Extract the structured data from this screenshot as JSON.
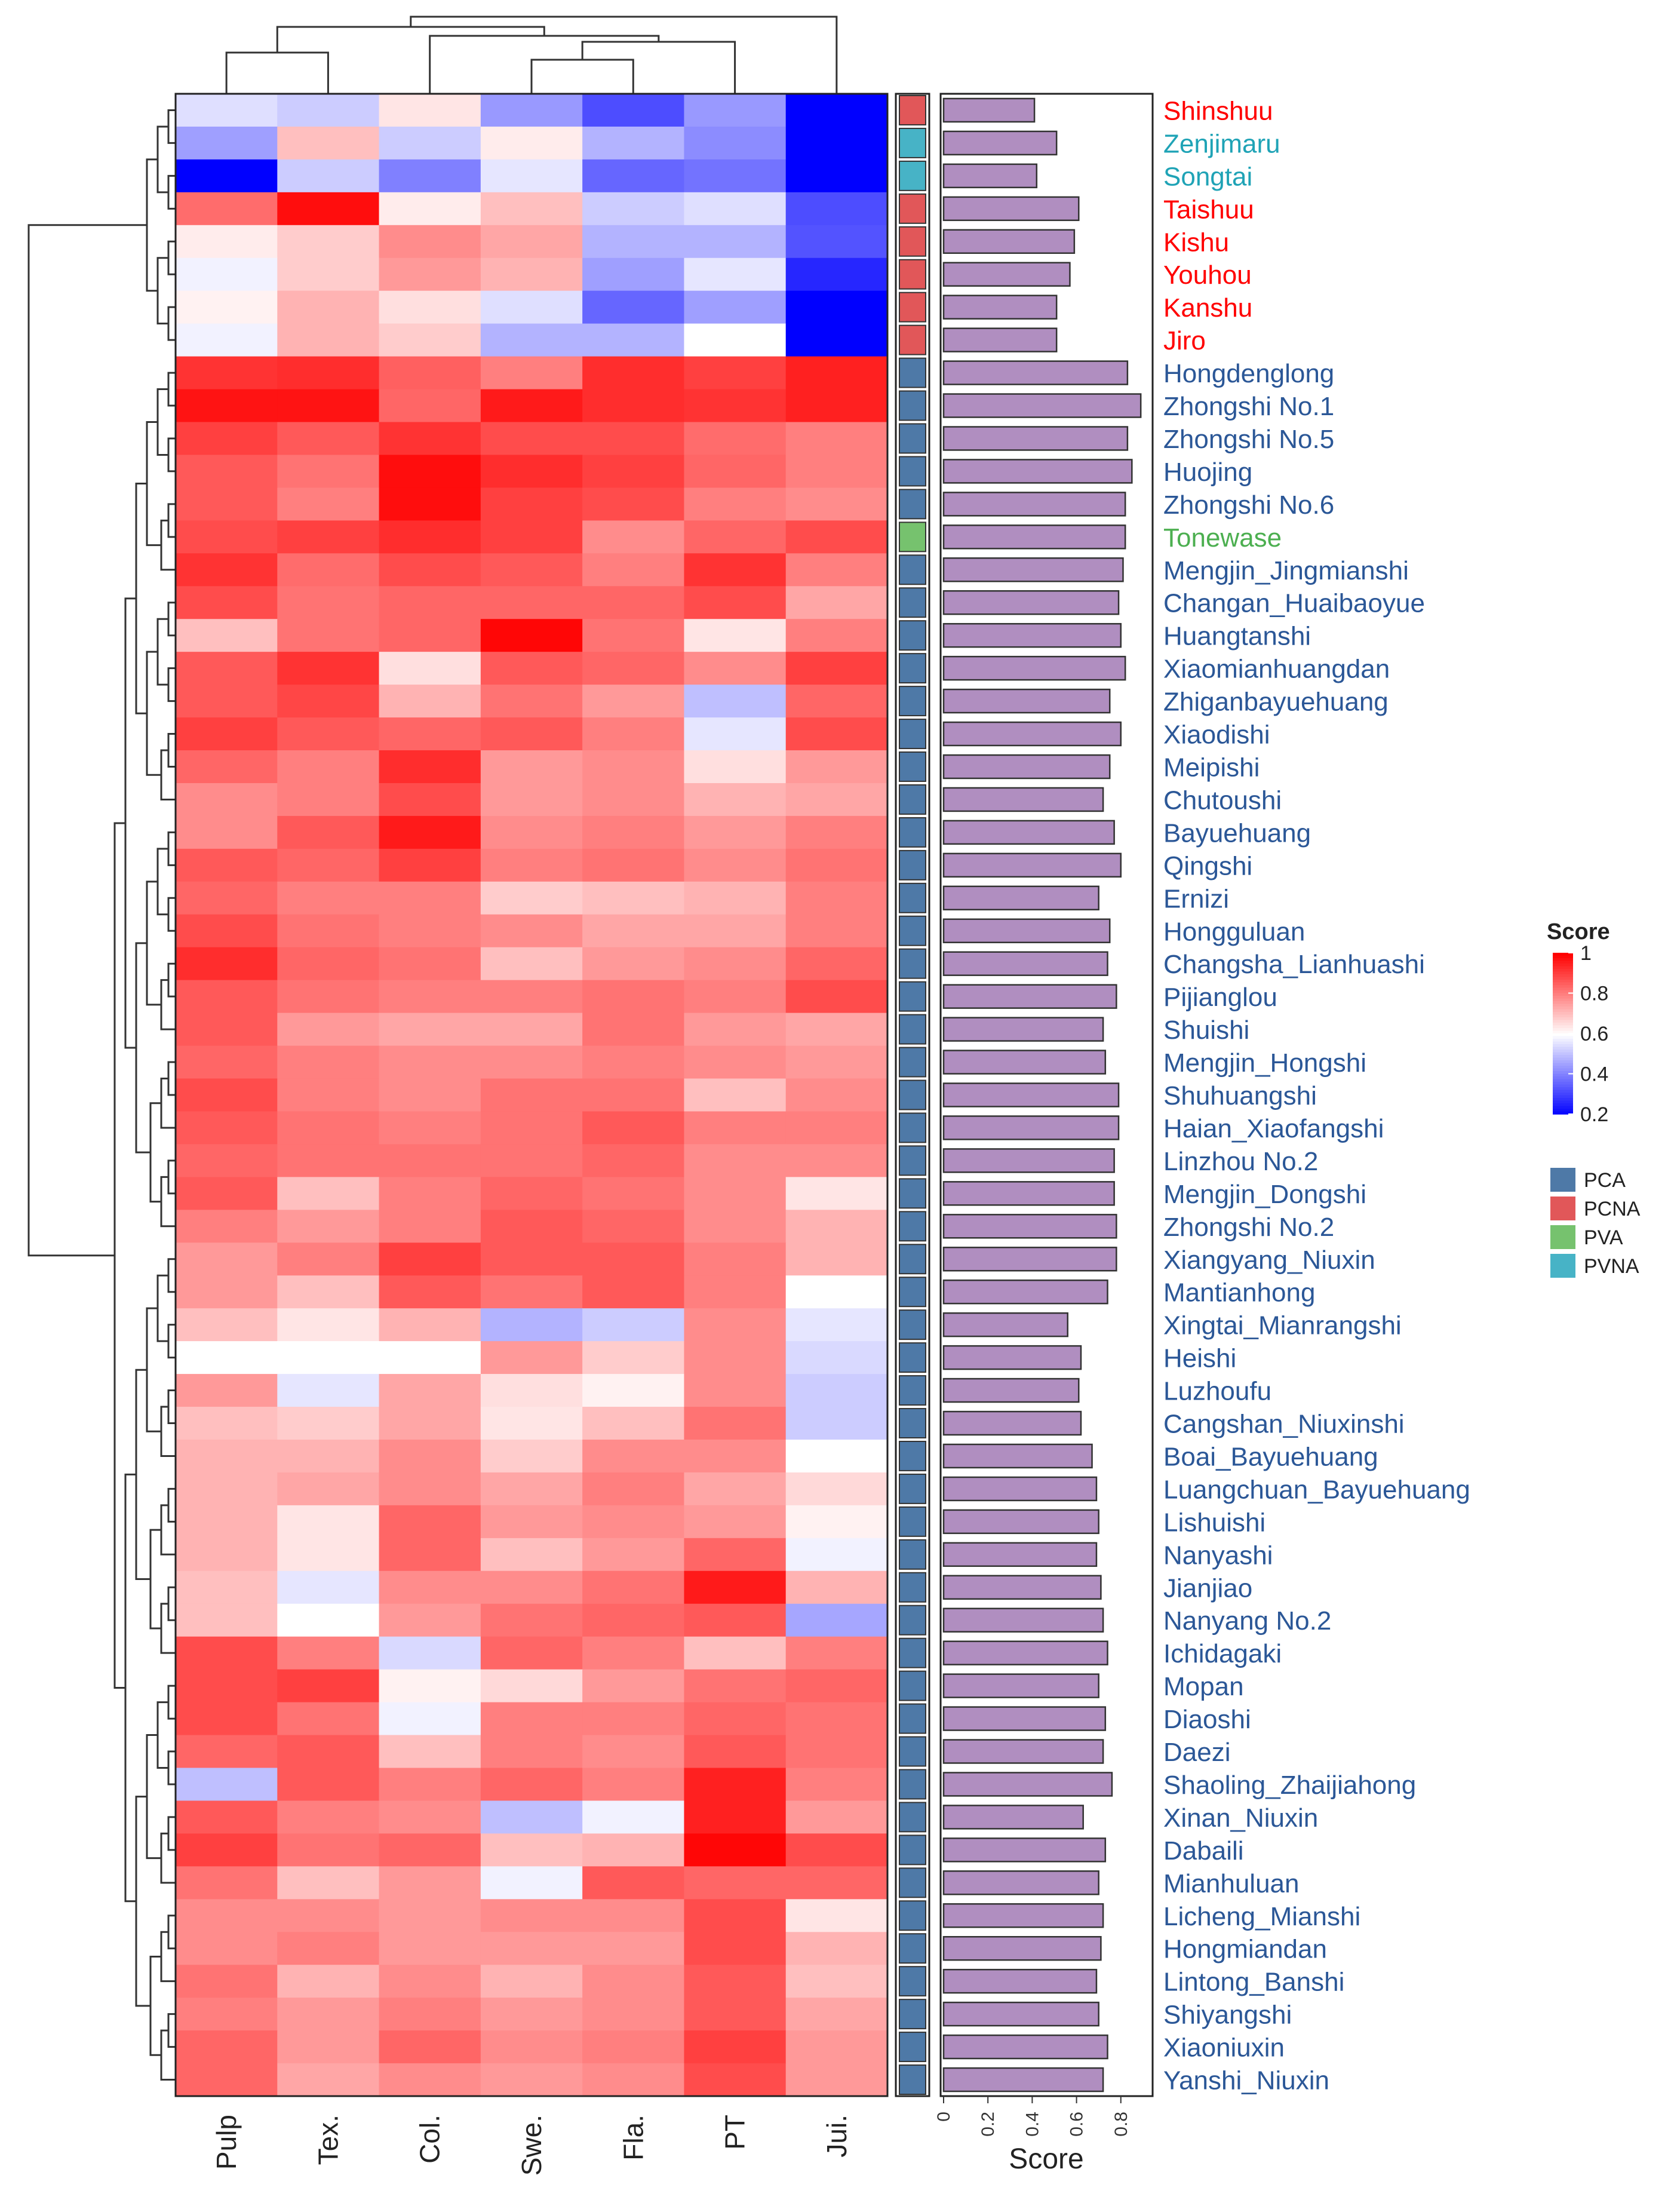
{
  "chart_data": {
    "type": "heatmap",
    "columns": [
      "Pulp",
      "Tex.",
      "Col.",
      "Swe.",
      "Fla.",
      "PT",
      "Jui."
    ],
    "rows": [
      {
        "name": "Shinshuu",
        "group": "PCNA",
        "score": 0.41,
        "values": [
          0.55,
          0.52,
          0.64,
          0.44,
          0.32,
          0.44,
          0.2
        ]
      },
      {
        "name": "Zenjimaru",
        "group": "PVNA",
        "score": 0.51,
        "values": [
          0.45,
          0.7,
          0.52,
          0.63,
          0.48,
          0.42,
          0.18
        ]
      },
      {
        "name": "Songtai",
        "group": "PVNA",
        "score": 0.42,
        "values": [
          0.2,
          0.52,
          0.4,
          0.56,
          0.36,
          0.38,
          0.18
        ]
      },
      {
        "name": "Taishuu",
        "group": "PCNA",
        "score": 0.61,
        "values": [
          0.83,
          0.98,
          0.63,
          0.7,
          0.52,
          0.55,
          0.32
        ]
      },
      {
        "name": "Kishu",
        "group": "PCNA",
        "score": 0.59,
        "values": [
          0.63,
          0.68,
          0.78,
          0.74,
          0.48,
          0.48,
          0.33
        ]
      },
      {
        "name": "Youhou",
        "group": "PCNA",
        "score": 0.57,
        "values": [
          0.58,
          0.68,
          0.76,
          0.72,
          0.45,
          0.56,
          0.26
        ]
      },
      {
        "name": "Kanshu",
        "group": "PCNA",
        "score": 0.51,
        "values": [
          0.62,
          0.72,
          0.65,
          0.55,
          0.36,
          0.45,
          0.18
        ]
      },
      {
        "name": "Jiro",
        "group": "PCNA",
        "score": 0.51,
        "values": [
          0.58,
          0.72,
          0.68,
          0.48,
          0.48,
          0.6,
          0.18
        ]
      },
      {
        "name": "Hongdenglong",
        "group": "PCA",
        "score": 0.83,
        "values": [
          0.92,
          0.93,
          0.85,
          0.8,
          0.93,
          0.9,
          0.95
        ]
      },
      {
        "name": "Zhongshi No.1",
        "group": "PCA",
        "score": 0.89,
        "values": [
          0.97,
          0.97,
          0.84,
          0.96,
          0.93,
          0.92,
          0.95
        ]
      },
      {
        "name": "Zhongshi No.5",
        "group": "PCA",
        "score": 0.83,
        "values": [
          0.9,
          0.86,
          0.92,
          0.88,
          0.88,
          0.83,
          0.8
        ]
      },
      {
        "name": "Huojing",
        "group": "PCA",
        "score": 0.85,
        "values": [
          0.86,
          0.82,
          0.98,
          0.93,
          0.9,
          0.84,
          0.8
        ]
      },
      {
        "name": "Zhongshi No.6",
        "group": "PCA",
        "score": 0.82,
        "values": [
          0.86,
          0.8,
          0.98,
          0.9,
          0.88,
          0.8,
          0.78
        ]
      },
      {
        "name": "Tonewase",
        "group": "PVA",
        "score": 0.82,
        "values": [
          0.88,
          0.9,
          0.93,
          0.9,
          0.78,
          0.84,
          0.88
        ]
      },
      {
        "name": "Mengjin_Jingmianshi",
        "group": "PCA",
        "score": 0.81,
        "values": [
          0.92,
          0.83,
          0.88,
          0.86,
          0.8,
          0.92,
          0.8
        ]
      },
      {
        "name": "Changan_Huaibaoyue",
        "group": "PCA",
        "score": 0.79,
        "values": [
          0.88,
          0.82,
          0.84,
          0.84,
          0.84,
          0.88,
          0.74
        ]
      },
      {
        "name": "Huangtanshi",
        "group": "PCA",
        "score": 0.8,
        "values": [
          0.7,
          0.82,
          0.84,
          0.99,
          0.82,
          0.64,
          0.8
        ]
      },
      {
        "name": "Xiaomianhuangdan",
        "group": "PCA",
        "score": 0.82,
        "values": [
          0.86,
          0.92,
          0.65,
          0.86,
          0.84,
          0.78,
          0.9
        ]
      },
      {
        "name": "Zhiganbayuehuang",
        "group": "PCA",
        "score": 0.75,
        "values": [
          0.86,
          0.89,
          0.72,
          0.82,
          0.76,
          0.5,
          0.84
        ]
      },
      {
        "name": "Xiaodishi",
        "group": "PCA",
        "score": 0.8,
        "values": [
          0.9,
          0.86,
          0.84,
          0.86,
          0.8,
          0.56,
          0.88
        ]
      },
      {
        "name": "Meipishi",
        "group": "PCA",
        "score": 0.75,
        "values": [
          0.84,
          0.8,
          0.93,
          0.76,
          0.78,
          0.65,
          0.76
        ]
      },
      {
        "name": "Chutoushi",
        "group": "PCA",
        "score": 0.72,
        "values": [
          0.78,
          0.8,
          0.88,
          0.76,
          0.78,
          0.72,
          0.74
        ]
      },
      {
        "name": "Bayuehuang",
        "group": "PCA",
        "score": 0.77,
        "values": [
          0.78,
          0.86,
          0.96,
          0.78,
          0.8,
          0.76,
          0.8
        ]
      },
      {
        "name": "Qingshi",
        "group": "PCA",
        "score": 0.8,
        "values": [
          0.86,
          0.84,
          0.9,
          0.8,
          0.82,
          0.78,
          0.82
        ]
      },
      {
        "name": "Ernizi",
        "group": "PCA",
        "score": 0.7,
        "values": [
          0.84,
          0.8,
          0.8,
          0.68,
          0.7,
          0.72,
          0.8
        ]
      },
      {
        "name": "Hongguluan",
        "group": "PCA",
        "score": 0.75,
        "values": [
          0.88,
          0.82,
          0.8,
          0.78,
          0.74,
          0.74,
          0.8
        ]
      },
      {
        "name": "Changsha_Lianhuashi",
        "group": "PCA",
        "score": 0.74,
        "values": [
          0.93,
          0.84,
          0.82,
          0.7,
          0.76,
          0.78,
          0.84
        ]
      },
      {
        "name": "Pijianglou",
        "group": "PCA",
        "score": 0.78,
        "values": [
          0.86,
          0.82,
          0.8,
          0.8,
          0.82,
          0.8,
          0.88
        ]
      },
      {
        "name": "Shuishi",
        "group": "PCA",
        "score": 0.72,
        "values": [
          0.86,
          0.76,
          0.74,
          0.74,
          0.82,
          0.76,
          0.74
        ]
      },
      {
        "name": "Mengjin_Hongshi",
        "group": "PCA",
        "score": 0.73,
        "values": [
          0.84,
          0.8,
          0.78,
          0.78,
          0.8,
          0.78,
          0.76
        ]
      },
      {
        "name": "Shuhuangshi",
        "group": "PCA",
        "score": 0.79,
        "values": [
          0.88,
          0.8,
          0.78,
          0.82,
          0.82,
          0.7,
          0.78
        ]
      },
      {
        "name": "Haian_Xiaofangshi",
        "group": "PCA",
        "score": 0.79,
        "values": [
          0.86,
          0.82,
          0.8,
          0.82,
          0.86,
          0.8,
          0.8
        ]
      },
      {
        "name": "Linzhou No.2",
        "group": "PCA",
        "score": 0.77,
        "values": [
          0.84,
          0.82,
          0.82,
          0.82,
          0.84,
          0.78,
          0.78
        ]
      },
      {
        "name": "Mengjin_Dongshi",
        "group": "PCA",
        "score": 0.77,
        "values": [
          0.86,
          0.7,
          0.8,
          0.84,
          0.82,
          0.78,
          0.64
        ]
      },
      {
        "name": "Zhongshi No.2",
        "group": "PCA",
        "score": 0.78,
        "values": [
          0.8,
          0.76,
          0.8,
          0.86,
          0.84,
          0.78,
          0.72
        ]
      },
      {
        "name": "Xiangyang_Niuxin",
        "group": "PCA",
        "score": 0.78,
        "values": [
          0.76,
          0.8,
          0.9,
          0.86,
          0.86,
          0.8,
          0.72
        ]
      },
      {
        "name": "Mantianhong",
        "group": "PCA",
        "score": 0.74,
        "values": [
          0.76,
          0.7,
          0.86,
          0.82,
          0.86,
          0.8,
          0.6
        ]
      },
      {
        "name": "Xingtai_Mianrangshi",
        "group": "PCA",
        "score": 0.56,
        "values": [
          0.7,
          0.64,
          0.72,
          0.48,
          0.52,
          0.78,
          0.56
        ]
      },
      {
        "name": "Heishi",
        "group": "PCA",
        "score": 0.62,
        "values": [
          0.6,
          0.6,
          0.6,
          0.76,
          0.68,
          0.78,
          0.54
        ]
      },
      {
        "name": "Luzhoufu",
        "group": "PCA",
        "score": 0.61,
        "values": [
          0.76,
          0.56,
          0.74,
          0.65,
          0.62,
          0.78,
          0.52
        ]
      },
      {
        "name": "Cangshan_Niuxinshi",
        "group": "PCA",
        "score": 0.62,
        "values": [
          0.7,
          0.68,
          0.74,
          0.64,
          0.7,
          0.82,
          0.52
        ]
      },
      {
        "name": "Boai_Bayuehuang",
        "group": "PCA",
        "score": 0.67,
        "values": [
          0.72,
          0.72,
          0.78,
          0.68,
          0.78,
          0.78,
          0.6
        ]
      },
      {
        "name": "Luangchuan_Bayuehuang",
        "group": "PCA",
        "score": 0.69,
        "values": [
          0.72,
          0.74,
          0.78,
          0.74,
          0.8,
          0.74,
          0.66
        ]
      },
      {
        "name": "Lishuishi",
        "group": "PCA",
        "score": 0.7,
        "values": [
          0.72,
          0.64,
          0.84,
          0.76,
          0.78,
          0.76,
          0.62
        ]
      },
      {
        "name": "Nanyashi",
        "group": "PCA",
        "score": 0.69,
        "values": [
          0.72,
          0.64,
          0.84,
          0.7,
          0.76,
          0.84,
          0.58
        ]
      },
      {
        "name": "Jianjiao",
        "group": "PCA",
        "score": 0.71,
        "values": [
          0.7,
          0.56,
          0.78,
          0.78,
          0.82,
          0.96,
          0.72
        ]
      },
      {
        "name": "Nanyang No.2",
        "group": "PCA",
        "score": 0.72,
        "values": [
          0.7,
          0.6,
          0.76,
          0.82,
          0.84,
          0.86,
          0.46
        ]
      },
      {
        "name": "Ichidagaki",
        "group": "PCA",
        "score": 0.74,
        "values": [
          0.88,
          0.8,
          0.54,
          0.84,
          0.8,
          0.7,
          0.8
        ]
      },
      {
        "name": "Mopan",
        "group": "PCA",
        "score": 0.7,
        "values": [
          0.88,
          0.9,
          0.62,
          0.66,
          0.76,
          0.82,
          0.84
        ]
      },
      {
        "name": "Diaoshi",
        "group": "PCA",
        "score": 0.73,
        "values": [
          0.88,
          0.82,
          0.58,
          0.8,
          0.8,
          0.84,
          0.82
        ]
      },
      {
        "name": "Daezi",
        "group": "PCA",
        "score": 0.72,
        "values": [
          0.84,
          0.86,
          0.7,
          0.8,
          0.78,
          0.86,
          0.82
        ]
      },
      {
        "name": "Shaoling_Zhaijiahong",
        "group": "PCA",
        "score": 0.76,
        "values": [
          0.5,
          0.86,
          0.8,
          0.84,
          0.8,
          0.95,
          0.8
        ]
      },
      {
        "name": "Xinan_Niuxin",
        "group": "PCA",
        "score": 0.63,
        "values": [
          0.86,
          0.8,
          0.78,
          0.5,
          0.58,
          0.95,
          0.76
        ]
      },
      {
        "name": "Dabaili",
        "group": "PCA",
        "score": 0.73,
        "values": [
          0.9,
          0.82,
          0.84,
          0.7,
          0.72,
          0.99,
          0.88
        ]
      },
      {
        "name": "Mianhuluan",
        "group": "PCA",
        "score": 0.7,
        "values": [
          0.82,
          0.7,
          0.76,
          0.58,
          0.86,
          0.84,
          0.84
        ]
      },
      {
        "name": "Licheng_Mianshi",
        "group": "PCA",
        "score": 0.72,
        "values": [
          0.78,
          0.78,
          0.76,
          0.78,
          0.78,
          0.88,
          0.64
        ]
      },
      {
        "name": "Hongmiandan",
        "group": "PCA",
        "score": 0.71,
        "values": [
          0.78,
          0.8,
          0.76,
          0.76,
          0.76,
          0.88,
          0.72
        ]
      },
      {
        "name": "Lintong_Banshi",
        "group": "PCA",
        "score": 0.69,
        "values": [
          0.82,
          0.72,
          0.78,
          0.72,
          0.78,
          0.86,
          0.7
        ]
      },
      {
        "name": "Shiyangshi",
        "group": "PCA",
        "score": 0.7,
        "values": [
          0.8,
          0.76,
          0.8,
          0.76,
          0.78,
          0.86,
          0.74
        ]
      },
      {
        "name": "Xiaoniuxin",
        "group": "PCA",
        "score": 0.74,
        "values": [
          0.84,
          0.76,
          0.84,
          0.78,
          0.8,
          0.9,
          0.76
        ]
      },
      {
        "name": "Yanshi_Niuxin",
        "group": "PCA",
        "score": 0.72,
        "values": [
          0.84,
          0.74,
          0.78,
          0.76,
          0.78,
          0.88,
          0.76
        ]
      }
    ],
    "colorbar": {
      "title": "Score",
      "min": 0.2,
      "max": 1,
      "ticks": [
        "1",
        "0.8",
        "0.6",
        "0.4",
        "0.2"
      ]
    },
    "groups": {
      "title": "",
      "items": [
        {
          "name": "PCA",
          "color": "#4e79a7",
          "label_color": "#2b5797"
        },
        {
          "name": "PCNA",
          "color": "#e15759",
          "label_color": "#ff0000"
        },
        {
          "name": "PVA",
          "color": "#76c26e",
          "label_color": "#4caf50"
        },
        {
          "name": "PVNA",
          "color": "#47b3c6",
          "label_color": "#1fa3b6"
        }
      ]
    },
    "bar_axis": {
      "title": "Score",
      "ticks": [
        "0",
        "0.2",
        "0.4",
        "0.6",
        "0.8"
      ],
      "range": [
        0,
        0.93
      ]
    },
    "bar_color": "#b08ec0",
    "colors": {
      "low": "#0000ff",
      "mid": "#ffffff",
      "high": "#ff0000"
    }
  }
}
